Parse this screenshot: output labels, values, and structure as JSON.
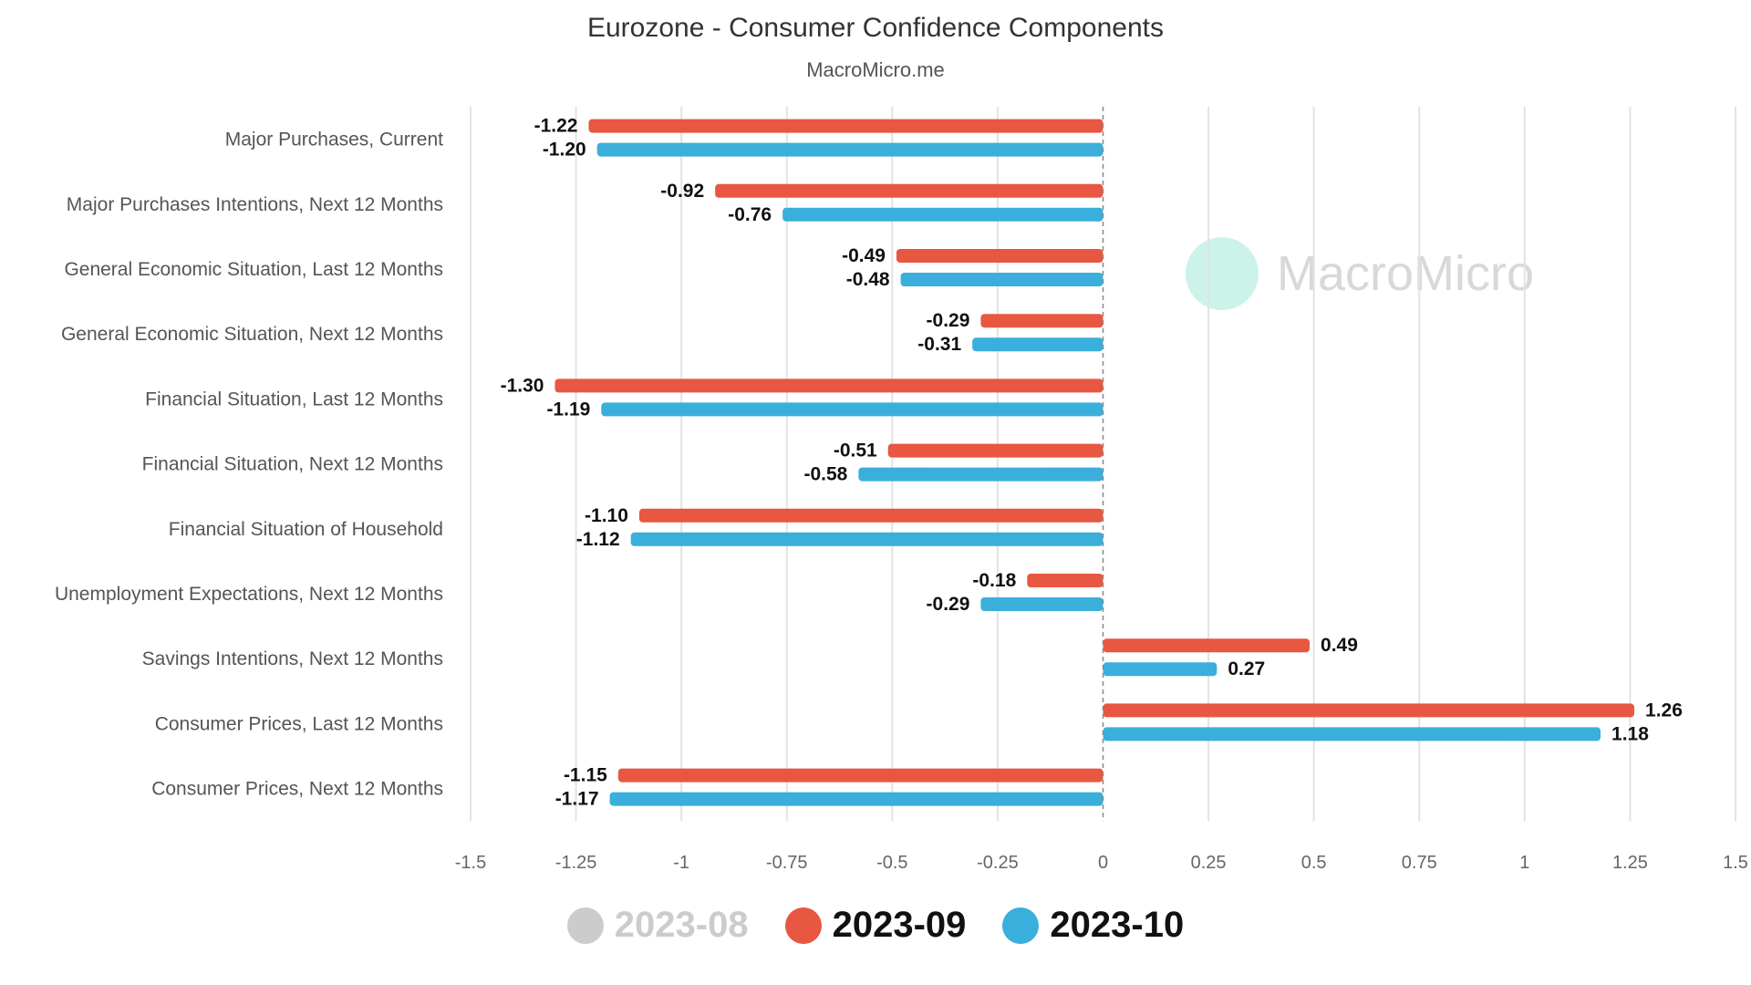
{
  "chart_data": {
    "type": "bar",
    "orientation": "horizontal",
    "title": "Eurozone - Consumer Confidence Components",
    "subtitle": "MacroMicro.me",
    "watermark": "MacroMicro",
    "categories": [
      "Major Purchases, Current",
      "Major Purchases Intentions, Next 12 Months",
      "General Economic Situation, Last 12 Months",
      "General Economic Situation, Next 12 Months",
      "Financial Situation, Last 12 Months",
      "Financial Situation, Next 12 Months",
      "Financial Situation of Household",
      "Unemployment Expectations, Next 12 Months",
      "Savings Intentions, Next 12 Months",
      "Consumer Prices, Last 12 Months",
      "Consumer Prices, Next 12 Months"
    ],
    "series": [
      {
        "name": "2023-09",
        "color": "#e85741",
        "values": [
          -1.22,
          -0.92,
          -0.49,
          -0.29,
          -1.3,
          -0.51,
          -1.1,
          -0.18,
          0.49,
          1.26,
          -1.15
        ]
      },
      {
        "name": "2023-10",
        "color": "#3aafdb",
        "values": [
          -1.2,
          -0.76,
          -0.48,
          -0.31,
          -1.19,
          -0.58,
          -1.12,
          -0.29,
          0.27,
          1.18,
          -1.17
        ]
      }
    ],
    "legend": [
      {
        "name": "2023-08",
        "color": "#cccccc",
        "hidden": true
      },
      {
        "name": "2023-09",
        "color": "#e85741",
        "hidden": false
      },
      {
        "name": "2023-10",
        "color": "#3aafdb",
        "hidden": false
      }
    ],
    "xlim": [
      -1.5,
      1.5
    ],
    "xticks": [
      -1.5,
      -1.25,
      -1,
      -0.75,
      -0.5,
      -0.25,
      0,
      0.25,
      0.5,
      0.75,
      1,
      1.25,
      1.5
    ],
    "grid": true,
    "legend_position": "bottom"
  }
}
